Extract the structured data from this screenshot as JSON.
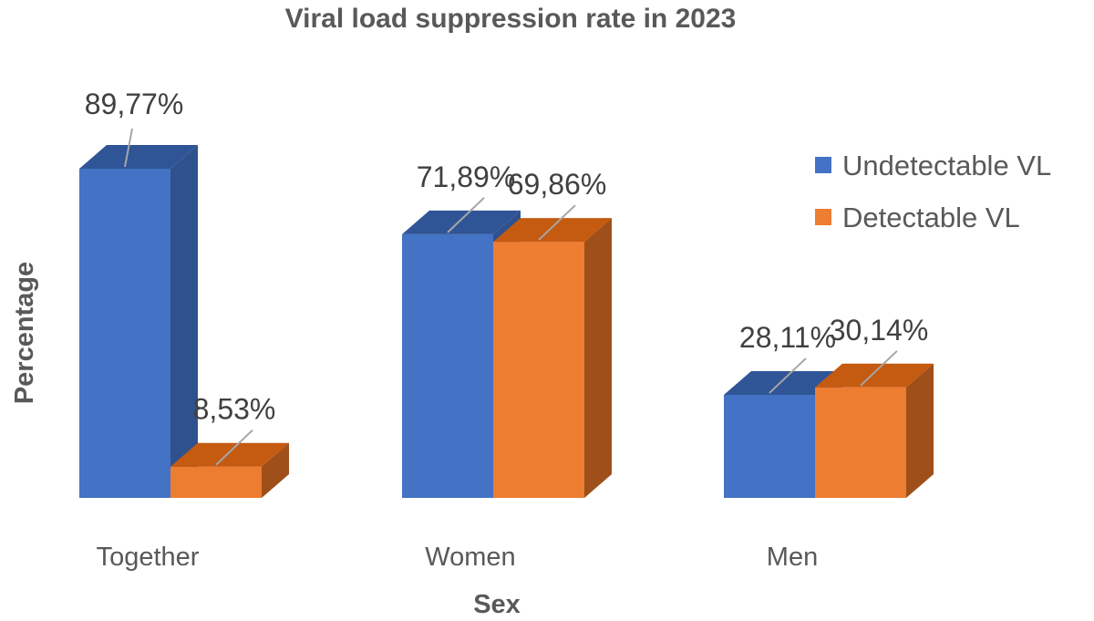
{
  "chart_data": {
    "type": "bar",
    "title": "Viral load suppression rate in 2023",
    "xlabel": "Sex",
    "ylabel": "Percentage",
    "categories": [
      "Together",
      "Women",
      "Men"
    ],
    "series": [
      {
        "name": "Undetectable VL",
        "values": [
          89.77,
          71.89,
          28.11
        ],
        "labels": [
          "89,77%",
          "71,89%",
          "28,11%"
        ]
      },
      {
        "name": "Detectable VL",
        "values": [
          8.53,
          69.86,
          30.14
        ],
        "labels": [
          "8,53%",
          "69,86%",
          "30,14%"
        ]
      }
    ],
    "ylim": [
      0,
      100
    ],
    "grid": false,
    "legend": "right",
    "style": "3d-column",
    "colors": {
      "Undetectable VL": {
        "front": "#4472C4",
        "side": "#2F528F",
        "top": "#2F5597"
      },
      "Detectable VL": {
        "front": "#ED7D31",
        "side": "#9E4F1A",
        "top": "#C55A11"
      }
    }
  }
}
